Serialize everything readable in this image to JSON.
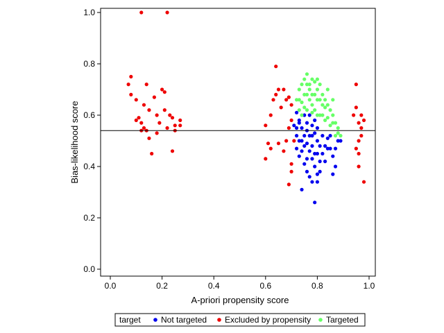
{
  "chart_data": {
    "type": "scatter",
    "xlabel": "A-priori propensity score",
    "ylabel": "Bias-likelihood score",
    "xlim": [
      0.0,
      1.0
    ],
    "ylim": [
      0.0,
      1.0
    ],
    "xticks": [
      "0.0",
      "0.2",
      "0.4",
      "0.6",
      "0.8",
      "1.0"
    ],
    "yticks": [
      "0.0",
      "0.2",
      "0.4",
      "0.6",
      "0.8",
      "1.0"
    ],
    "reference_line_y": 0.54,
    "grid": false,
    "legend": {
      "title": "target",
      "placement": "bottom-center",
      "entries": [
        "Not targeted",
        "Excluded by propensity",
        "Targeted"
      ]
    },
    "series": [
      {
        "name": "Not targeted",
        "color": "#0000ee",
        "points": [
          [
            0.72,
            0.61
          ],
          [
            0.73,
            0.58
          ],
          [
            0.74,
            0.55
          ],
          [
            0.75,
            0.52
          ],
          [
            0.76,
            0.49
          ],
          [
            0.77,
            0.46
          ],
          [
            0.78,
            0.43
          ],
          [
            0.79,
            0.4
          ],
          [
            0.8,
            0.37
          ],
          [
            0.78,
            0.34
          ],
          [
            0.79,
            0.26
          ],
          [
            0.74,
            0.31
          ],
          [
            0.72,
            0.47
          ],
          [
            0.73,
            0.44
          ],
          [
            0.75,
            0.41
          ],
          [
            0.76,
            0.38
          ],
          [
            0.81,
            0.42
          ],
          [
            0.82,
            0.45
          ],
          [
            0.83,
            0.48
          ],
          [
            0.84,
            0.51
          ],
          [
            0.85,
            0.47
          ],
          [
            0.86,
            0.44
          ],
          [
            0.87,
            0.4
          ],
          [
            0.86,
            0.37
          ],
          [
            0.88,
            0.5
          ],
          [
            0.89,
            0.5
          ],
          [
            0.8,
            0.55
          ],
          [
            0.79,
            0.58
          ],
          [
            0.77,
            0.6
          ],
          [
            0.75,
            0.6
          ],
          [
            0.73,
            0.57
          ],
          [
            0.71,
            0.56
          ],
          [
            0.72,
            0.52
          ],
          [
            0.74,
            0.5
          ],
          [
            0.76,
            0.54
          ],
          [
            0.78,
            0.52
          ],
          [
            0.8,
            0.5
          ],
          [
            0.81,
            0.48
          ],
          [
            0.79,
            0.45
          ],
          [
            0.77,
            0.52
          ],
          [
            0.75,
            0.48
          ],
          [
            0.73,
            0.5
          ],
          [
            0.78,
            0.48
          ],
          [
            0.82,
            0.52
          ],
          [
            0.84,
            0.47
          ],
          [
            0.83,
            0.42
          ],
          [
            0.81,
            0.38
          ],
          [
            0.8,
            0.34
          ],
          [
            0.77,
            0.36
          ],
          [
            0.76,
            0.43
          ],
          [
            0.74,
            0.46
          ],
          [
            0.72,
            0.55
          ],
          [
            0.85,
            0.52
          ],
          [
            0.87,
            0.47
          ],
          [
            0.79,
            0.53
          ],
          [
            0.78,
            0.56
          ],
          [
            0.76,
            0.57
          ],
          [
            0.8,
            0.45
          ]
        ]
      },
      {
        "name": "Excluded by propensity",
        "color": "#ee0000",
        "points": [
          [
            0.12,
            1.0
          ],
          [
            0.22,
            1.0
          ],
          [
            0.07,
            0.72
          ],
          [
            0.08,
            0.75
          ],
          [
            0.08,
            0.68
          ],
          [
            0.1,
            0.66
          ],
          [
            0.11,
            0.59
          ],
          [
            0.12,
            0.57
          ],
          [
            0.13,
            0.55
          ],
          [
            0.13,
            0.64
          ],
          [
            0.14,
            0.72
          ],
          [
            0.15,
            0.62
          ],
          [
            0.15,
            0.51
          ],
          [
            0.16,
            0.45
          ],
          [
            0.14,
            0.54
          ],
          [
            0.17,
            0.67
          ],
          [
            0.18,
            0.6
          ],
          [
            0.19,
            0.57
          ],
          [
            0.2,
            0.7
          ],
          [
            0.21,
            0.69
          ],
          [
            0.21,
            0.62
          ],
          [
            0.22,
            0.55
          ],
          [
            0.23,
            0.6
          ],
          [
            0.24,
            0.59
          ],
          [
            0.24,
            0.46
          ],
          [
            0.25,
            0.56
          ],
          [
            0.25,
            0.54
          ],
          [
            0.27,
            0.58
          ],
          [
            0.27,
            0.56
          ],
          [
            0.12,
            0.54
          ],
          [
            0.1,
            0.58
          ],
          [
            0.18,
            0.53
          ],
          [
            0.64,
            0.79
          ],
          [
            0.6,
            0.43
          ],
          [
            0.6,
            0.56
          ],
          [
            0.61,
            0.49
          ],
          [
            0.62,
            0.6
          ],
          [
            0.63,
            0.66
          ],
          [
            0.64,
            0.68
          ],
          [
            0.65,
            0.7
          ],
          [
            0.66,
            0.63
          ],
          [
            0.67,
            0.7
          ],
          [
            0.68,
            0.66
          ],
          [
            0.69,
            0.67
          ],
          [
            0.7,
            0.64
          ],
          [
            0.7,
            0.58
          ],
          [
            0.69,
            0.55
          ],
          [
            0.68,
            0.5
          ],
          [
            0.67,
            0.46
          ],
          [
            0.7,
            0.41
          ],
          [
            0.7,
            0.38
          ],
          [
            0.69,
            0.33
          ],
          [
            0.71,
            0.5
          ],
          [
            0.65,
            0.49
          ],
          [
            0.62,
            0.47
          ],
          [
            0.95,
            0.72
          ],
          [
            0.95,
            0.63
          ],
          [
            0.96,
            0.57
          ],
          [
            0.96,
            0.5
          ],
          [
            0.96,
            0.4
          ],
          [
            0.97,
            0.55
          ],
          [
            0.97,
            0.52
          ],
          [
            0.98,
            0.34
          ],
          [
            0.98,
            0.58
          ],
          [
            0.94,
            0.6
          ],
          [
            0.95,
            0.47
          ],
          [
            0.96,
            0.45
          ],
          [
            0.97,
            0.6
          ]
        ]
      },
      {
        "name": "Targeted",
        "color": "#66ff66",
        "points": [
          [
            0.72,
            0.66
          ],
          [
            0.73,
            0.7
          ],
          [
            0.74,
            0.72
          ],
          [
            0.75,
            0.74
          ],
          [
            0.76,
            0.76
          ],
          [
            0.77,
            0.72
          ],
          [
            0.78,
            0.68
          ],
          [
            0.79,
            0.73
          ],
          [
            0.8,
            0.7
          ],
          [
            0.81,
            0.72
          ],
          [
            0.82,
            0.68
          ],
          [
            0.83,
            0.66
          ],
          [
            0.84,
            0.64
          ],
          [
            0.85,
            0.62
          ],
          [
            0.86,
            0.6
          ],
          [
            0.87,
            0.57
          ],
          [
            0.88,
            0.55
          ],
          [
            0.89,
            0.52
          ],
          [
            0.86,
            0.66
          ],
          [
            0.84,
            0.7
          ],
          [
            0.82,
            0.64
          ],
          [
            0.8,
            0.66
          ],
          [
            0.78,
            0.64
          ],
          [
            0.76,
            0.68
          ],
          [
            0.74,
            0.65
          ],
          [
            0.73,
            0.62
          ],
          [
            0.75,
            0.63
          ],
          [
            0.77,
            0.66
          ],
          [
            0.79,
            0.62
          ],
          [
            0.81,
            0.6
          ],
          [
            0.83,
            0.58
          ],
          [
            0.85,
            0.56
          ],
          [
            0.87,
            0.52
          ],
          [
            0.82,
            0.6
          ],
          [
            0.8,
            0.6
          ],
          [
            0.78,
            0.61
          ],
          [
            0.76,
            0.62
          ],
          [
            0.74,
            0.6
          ],
          [
            0.77,
            0.7
          ],
          [
            0.79,
            0.68
          ],
          [
            0.81,
            0.66
          ],
          [
            0.83,
            0.63
          ],
          [
            0.84,
            0.59
          ],
          [
            0.86,
            0.57
          ],
          [
            0.88,
            0.53
          ],
          [
            0.75,
            0.68
          ],
          [
            0.73,
            0.66
          ],
          [
            0.78,
            0.74
          ],
          [
            0.8,
            0.74
          ],
          [
            0.76,
            0.72
          ]
        ]
      }
    ]
  }
}
